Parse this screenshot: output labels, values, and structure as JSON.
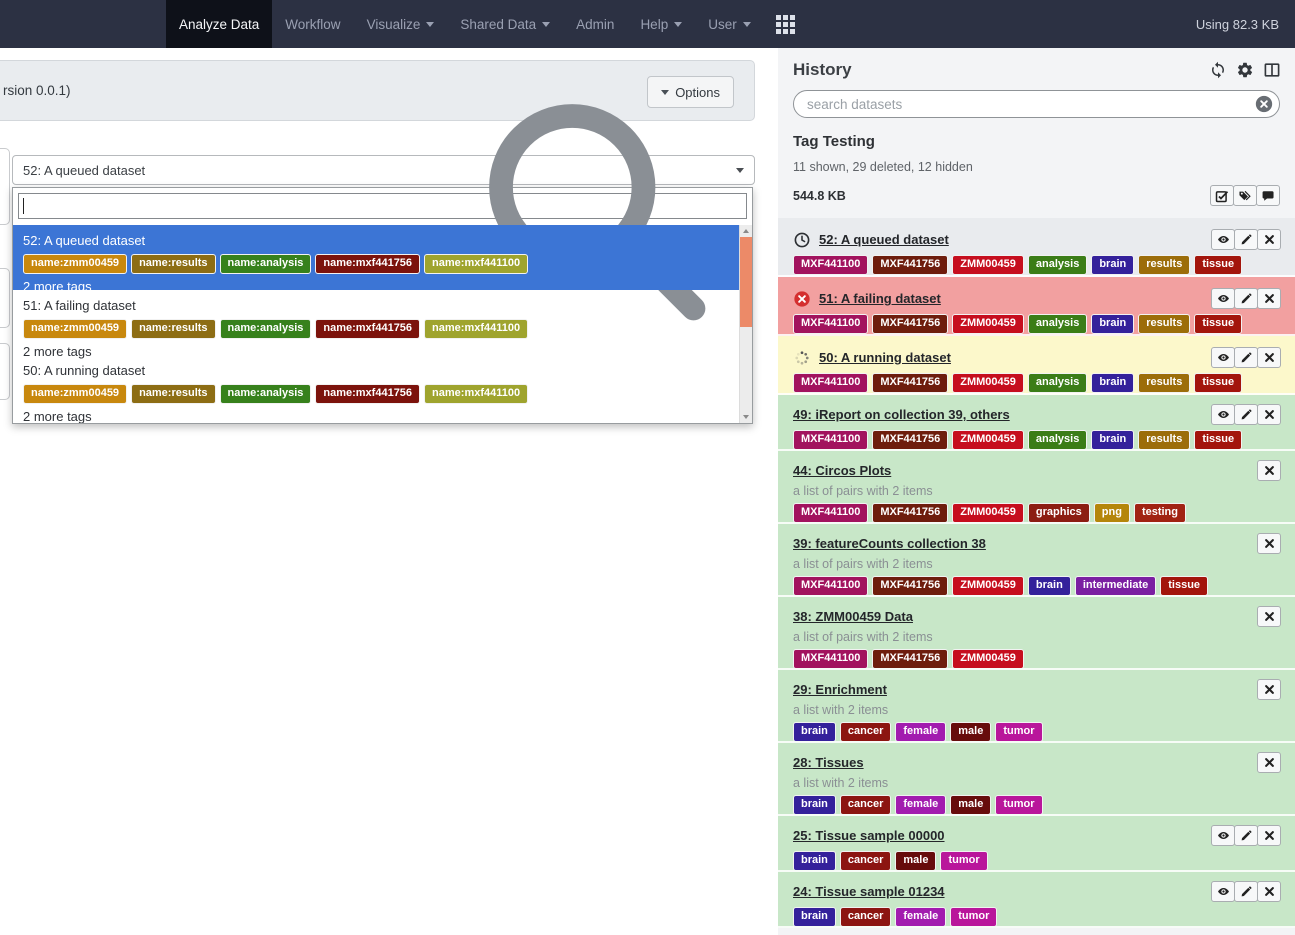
{
  "masthead": {
    "items": [
      {
        "label": "Analyze Data",
        "active": true,
        "caret": false
      },
      {
        "label": "Workflow",
        "active": false,
        "caret": false
      },
      {
        "label": "Visualize",
        "active": false,
        "caret": true
      },
      {
        "label": "Shared Data",
        "active": false,
        "caret": true
      },
      {
        "label": "Admin",
        "active": false,
        "caret": false
      },
      {
        "label": "Help",
        "active": false,
        "caret": true
      },
      {
        "label": "User",
        "active": false,
        "caret": true
      }
    ],
    "usage": "Using 82.3 KB"
  },
  "tool": {
    "header_text": "rsion 0.0.1)",
    "options_label": "Options"
  },
  "dataset_select": {
    "value": "52: A queued dataset",
    "search_value": "",
    "options": [
      {
        "label": "52: A queued dataset",
        "selected": true,
        "more": "2 more tags",
        "tags": [
          {
            "label": "name:zmm00459",
            "color": "#c8880e"
          },
          {
            "label": "name:results",
            "color": "#8d6d14"
          },
          {
            "label": "name:analysis",
            "color": "#37811c"
          },
          {
            "label": "name:mxf441756",
            "color": "#7c130c"
          },
          {
            "label": "name:mxf441100",
            "color": "#9fa42e"
          }
        ]
      },
      {
        "label": "51: A failing dataset",
        "selected": false,
        "more": "2 more tags",
        "tags": [
          {
            "label": "name:zmm00459",
            "color": "#c8880e"
          },
          {
            "label": "name:results",
            "color": "#8d6d14"
          },
          {
            "label": "name:analysis",
            "color": "#37811c"
          },
          {
            "label": "name:mxf441756",
            "color": "#7c130c"
          },
          {
            "label": "name:mxf441100",
            "color": "#9fa42e"
          }
        ]
      },
      {
        "label": "50: A running dataset",
        "selected": false,
        "more": "2 more tags",
        "tags": [
          {
            "label": "name:zmm00459",
            "color": "#c8880e"
          },
          {
            "label": "name:results",
            "color": "#8d6d14"
          },
          {
            "label": "name:analysis",
            "color": "#37811c"
          },
          {
            "label": "name:mxf441756",
            "color": "#7c130c"
          },
          {
            "label": "name:mxf441100",
            "color": "#9fa42e"
          }
        ]
      }
    ]
  },
  "colors": {
    "selected_option_bg": "#3c75d5",
    "scrollbar_thumb": "#ec8a68",
    "masthead_bg": "#2c3143",
    "state_queued_bg": "#e9ebee",
    "state_error_bg": "#f2a0a0",
    "state_running_bg": "#fcf8cb",
    "state_ok_bg": "#c8e7c8"
  },
  "history": {
    "title": "History",
    "header_icons": [
      "refresh-icon",
      "cog-icon",
      "columns-icon"
    ],
    "search_placeholder": "search datasets",
    "name": "Tag Testing",
    "counts": "11 shown, 29 deleted, 12 hidden",
    "size": "544.8 KB",
    "ops_icons": [
      "checkbox-icon",
      "tags-icon",
      "comment-icon"
    ],
    "items": [
      {
        "title": "52: A queued dataset",
        "state": "queued",
        "desc": null,
        "actions": [
          "display",
          "edit",
          "delete"
        ],
        "tags": [
          {
            "label": "MXF441100",
            "color": "#a2135e"
          },
          {
            "label": "MXF441756",
            "color": "#6e1d0d"
          },
          {
            "label": "ZMM00459",
            "color": "#c60e1e"
          },
          {
            "label": "analysis",
            "color": "#3b7d17"
          },
          {
            "label": "brain",
            "color": "#34219b"
          },
          {
            "label": "results",
            "color": "#9c6d0a"
          },
          {
            "label": "tissue",
            "color": "#a3150c"
          }
        ]
      },
      {
        "title": "51: A failing dataset",
        "state": "error",
        "desc": null,
        "actions": [
          "display",
          "edit",
          "delete"
        ],
        "tags": [
          {
            "label": "MXF441100",
            "color": "#a2135e"
          },
          {
            "label": "MXF441756",
            "color": "#6e1d0d"
          },
          {
            "label": "ZMM00459",
            "color": "#c60e1e"
          },
          {
            "label": "analysis",
            "color": "#3b7d17"
          },
          {
            "label": "brain",
            "color": "#34219b"
          },
          {
            "label": "results",
            "color": "#9c6d0a"
          },
          {
            "label": "tissue",
            "color": "#a3150c"
          }
        ]
      },
      {
        "title": "50: A running dataset",
        "state": "running",
        "desc": null,
        "actions": [
          "display",
          "edit",
          "delete"
        ],
        "tags": [
          {
            "label": "MXF441100",
            "color": "#a2135e"
          },
          {
            "label": "MXF441756",
            "color": "#6e1d0d"
          },
          {
            "label": "ZMM00459",
            "color": "#c60e1e"
          },
          {
            "label": "analysis",
            "color": "#3b7d17"
          },
          {
            "label": "brain",
            "color": "#34219b"
          },
          {
            "label": "results",
            "color": "#9c6d0a"
          },
          {
            "label": "tissue",
            "color": "#a3150c"
          }
        ]
      },
      {
        "title": "49: iReport on collection 39, others",
        "state": "ok",
        "desc": null,
        "actions": [
          "display",
          "edit",
          "delete"
        ],
        "tags": [
          {
            "label": "MXF441100",
            "color": "#a2135e"
          },
          {
            "label": "MXF441756",
            "color": "#6e1d0d"
          },
          {
            "label": "ZMM00459",
            "color": "#c60e1e"
          },
          {
            "label": "analysis",
            "color": "#3b7d17"
          },
          {
            "label": "brain",
            "color": "#34219b"
          },
          {
            "label": "results",
            "color": "#9c6d0a"
          },
          {
            "label": "tissue",
            "color": "#a3150c"
          }
        ]
      },
      {
        "title": "44: Circos Plots",
        "state": "ok",
        "desc": "a list of pairs with 2 items",
        "actions": [
          "delete"
        ],
        "tags": [
          {
            "label": "MXF441100",
            "color": "#a2135e"
          },
          {
            "label": "MXF441756",
            "color": "#6e1d0d"
          },
          {
            "label": "ZMM00459",
            "color": "#c60e1e"
          },
          {
            "label": "graphics",
            "color": "#8c1d12"
          },
          {
            "label": "png",
            "color": "#b5860b"
          },
          {
            "label": "testing",
            "color": "#a12313"
          }
        ]
      },
      {
        "title": "39: featureCounts collection 38",
        "state": "ok",
        "desc": "a list of pairs with 2 items",
        "actions": [
          "delete"
        ],
        "tags": [
          {
            "label": "MXF441100",
            "color": "#a2135e"
          },
          {
            "label": "MXF441756",
            "color": "#6e1d0d"
          },
          {
            "label": "ZMM00459",
            "color": "#c60e1e"
          },
          {
            "label": "brain",
            "color": "#34219b"
          },
          {
            "label": "intermediate",
            "color": "#7b1fa2"
          },
          {
            "label": "tissue",
            "color": "#a3150c"
          }
        ]
      },
      {
        "title": "38: ZMM00459 Data",
        "state": "ok",
        "desc": "a list of pairs with 2 items",
        "actions": [
          "delete"
        ],
        "tags": [
          {
            "label": "MXF441100",
            "color": "#a2135e"
          },
          {
            "label": "MXF441756",
            "color": "#6e1d0d"
          },
          {
            "label": "ZMM00459",
            "color": "#c60e1e"
          }
        ]
      },
      {
        "title": "29: Enrichment",
        "state": "ok",
        "desc": "a list with 2 items",
        "actions": [
          "delete"
        ],
        "tags": [
          {
            "label": "brain",
            "color": "#34219b"
          },
          {
            "label": "cancer",
            "color": "#8c1511"
          },
          {
            "label": "female",
            "color": "#a21caf"
          },
          {
            "label": "male",
            "color": "#670c0c"
          },
          {
            "label": "tumor",
            "color": "#b9169b"
          }
        ]
      },
      {
        "title": "28: Tissues",
        "state": "ok",
        "desc": "a list with 2 items",
        "actions": [
          "delete"
        ],
        "tags": [
          {
            "label": "brain",
            "color": "#34219b"
          },
          {
            "label": "cancer",
            "color": "#8c1511"
          },
          {
            "label": "female",
            "color": "#a21caf"
          },
          {
            "label": "male",
            "color": "#670c0c"
          },
          {
            "label": "tumor",
            "color": "#b9169b"
          }
        ]
      },
      {
        "title": "25: Tissue sample 00000",
        "state": "ok",
        "desc": null,
        "actions": [
          "display",
          "edit",
          "delete"
        ],
        "tags": [
          {
            "label": "brain",
            "color": "#34219b"
          },
          {
            "label": "cancer",
            "color": "#8c1511"
          },
          {
            "label": "male",
            "color": "#670c0c"
          },
          {
            "label": "tumor",
            "color": "#b9169b"
          }
        ]
      },
      {
        "title": "24: Tissue sample 01234",
        "state": "ok",
        "desc": null,
        "actions": [
          "display",
          "edit",
          "delete"
        ],
        "tags": [
          {
            "label": "brain",
            "color": "#34219b"
          },
          {
            "label": "cancer",
            "color": "#8c1511"
          },
          {
            "label": "female",
            "color": "#a21caf"
          },
          {
            "label": "tumor",
            "color": "#b9169b"
          }
        ]
      }
    ]
  }
}
